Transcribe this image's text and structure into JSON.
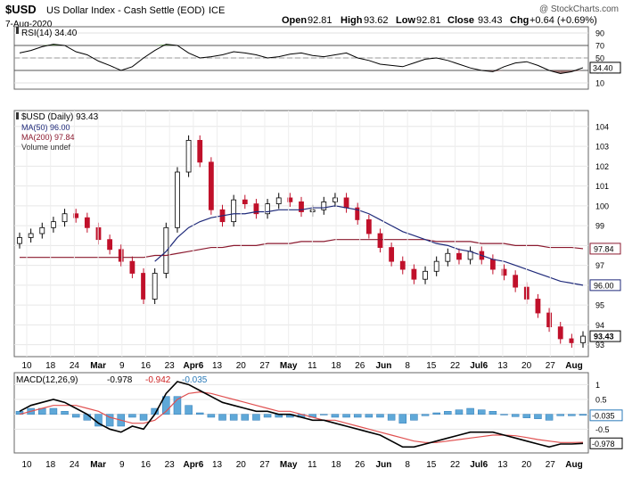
{
  "header": {
    "symbol": "$USD",
    "name": "US Dollar Index - Cash Settle (EOD)",
    "exchange": "ICE",
    "date": "7-Aug-2020",
    "watermark": "@ StockCharts.com",
    "open_label": "Open",
    "open": "92.81",
    "high_label": "High",
    "high": "93.62",
    "low_label": "Low",
    "low": "92.81",
    "close_label": "Close",
    "close": "93.43",
    "chg_label": "Chg",
    "chg": "+0.64 (+0.69%)"
  },
  "chart_data": [
    {
      "type": "line",
      "title": "RSI(14) 34.40",
      "ylim": [
        0,
        100
      ],
      "yticks": [
        "90",
        "70",
        "50",
        "30",
        "10"
      ],
      "overbought": 70,
      "oversold": 30,
      "last_value": "34.40",
      "values": [
        58,
        62,
        68,
        72,
        70,
        60,
        55,
        45,
        38,
        30,
        36,
        50,
        62,
        72,
        70,
        58,
        50,
        52,
        55,
        60,
        58,
        55,
        50,
        52,
        56,
        58,
        54,
        52,
        55,
        58,
        50,
        46,
        40,
        38,
        36,
        42,
        48,
        50,
        46,
        40,
        34,
        30,
        28,
        36,
        42,
        44,
        38,
        30,
        25,
        28,
        34.4
      ]
    },
    {
      "type": "line",
      "title": "$USD (Daily) 93.43",
      "legend": [
        "MA(50) 96.00",
        "MA(200) 97.84",
        "Volume undef"
      ],
      "series_colors": {
        "price": "#000000",
        "ma50": "#1f2a7a",
        "ma200": "#8b1a2f"
      },
      "ylim": [
        92.4,
        104.8
      ],
      "yticks": [
        "104",
        "103",
        "102",
        "101",
        "100",
        "99",
        "98",
        "97",
        "96",
        "95",
        "94",
        "93"
      ],
      "last_price": "93.43",
      "ma50_last": "96.00",
      "ma200_last": "97.84",
      "x_labels": [
        "10",
        "18",
        "24",
        "Mar",
        "9",
        "16",
        "23",
        "Apr6",
        "13",
        "20",
        "27",
        "May",
        "11",
        "18",
        "26",
        "Jun",
        "8",
        "15",
        "22",
        "Jul6",
        "13",
        "20",
        "27",
        "Aug"
      ],
      "price": [
        98.4,
        98.6,
        98.9,
        99.2,
        99.6,
        99.4,
        98.9,
        98.3,
        97.8,
        97.2,
        96.6,
        95.3,
        96.6,
        98.9,
        101.7,
        103.3,
        102.2,
        99.8,
        99.2,
        100.3,
        100.1,
        99.6,
        100.1,
        100.4,
        100.2,
        99.7,
        99.8,
        100.2,
        100.4,
        99.9,
        99.3,
        98.6,
        97.9,
        97.2,
        96.8,
        96.3,
        96.7,
        97.2,
        97.6,
        97.3,
        97.7,
        97.3,
        96.8,
        96.5,
        95.9,
        95.3,
        94.6,
        93.9,
        93.3,
        93.1,
        93.43
      ],
      "ma50": [
        null,
        null,
        null,
        null,
        null,
        null,
        null,
        null,
        null,
        null,
        null,
        null,
        97.2,
        97.7,
        98.4,
        98.9,
        99.2,
        99.4,
        99.5,
        99.6,
        99.6,
        99.7,
        99.7,
        99.8,
        99.8,
        99.8,
        99.9,
        99.9,
        100.0,
        99.9,
        99.8,
        99.6,
        99.3,
        99.0,
        98.7,
        98.5,
        98.3,
        98.1,
        98.0,
        97.8,
        97.7,
        97.5,
        97.3,
        97.2,
        97.0,
        96.8,
        96.6,
        96.4,
        96.2,
        96.1,
        96.0
      ],
      "ma200": [
        97.4,
        97.4,
        97.4,
        97.4,
        97.4,
        97.4,
        97.4,
        97.4,
        97.4,
        97.4,
        97.4,
        97.4,
        97.5,
        97.5,
        97.6,
        97.7,
        97.8,
        97.9,
        97.9,
        98.0,
        98.0,
        98.0,
        98.1,
        98.1,
        98.1,
        98.2,
        98.2,
        98.2,
        98.3,
        98.3,
        98.3,
        98.3,
        98.3,
        98.3,
        98.3,
        98.3,
        98.3,
        98.2,
        98.2,
        98.2,
        98.2,
        98.1,
        98.1,
        98.1,
        98.0,
        98.0,
        98.0,
        97.9,
        97.9,
        97.9,
        97.84
      ]
    },
    {
      "type": "bar",
      "title": "MACD(12,26,9)",
      "title_values": [
        "-0.978",
        "-0.942",
        "-0.035"
      ],
      "ylim": [
        -1.3,
        1.4
      ],
      "yticks": [
        "1",
        "0.5",
        "0.0",
        "-0.5"
      ],
      "last_hist": "-0.035",
      "last_macd": "-0.978",
      "macd": [
        0.1,
        0.3,
        0.4,
        0.5,
        0.4,
        0.2,
        0.0,
        -0.3,
        -0.5,
        -0.6,
        -0.4,
        -0.5,
        0.0,
        0.7,
        1.1,
        1.0,
        0.8,
        0.6,
        0.4,
        0.3,
        0.2,
        0.1,
        0.1,
        0.0,
        0.0,
        -0.1,
        -0.2,
        -0.2,
        -0.3,
        -0.4,
        -0.5,
        -0.6,
        -0.7,
        -0.9,
        -1.1,
        -1.1,
        -1.0,
        -0.9,
        -0.8,
        -0.7,
        -0.6,
        -0.6,
        -0.6,
        -0.7,
        -0.8,
        -0.9,
        -1.0,
        -1.1,
        -1.0,
        -1.0,
        -0.978
      ],
      "signal": [
        0.0,
        0.1,
        0.2,
        0.3,
        0.3,
        0.3,
        0.2,
        0.1,
        -0.1,
        -0.2,
        -0.3,
        -0.3,
        -0.2,
        0.1,
        0.5,
        0.7,
        0.75,
        0.7,
        0.6,
        0.5,
        0.4,
        0.3,
        0.2,
        0.1,
        0.1,
        0.0,
        -0.1,
        -0.2,
        -0.2,
        -0.3,
        -0.4,
        -0.5,
        -0.6,
        -0.7,
        -0.8,
        -0.9,
        -0.95,
        -0.95,
        -0.9,
        -0.85,
        -0.8,
        -0.75,
        -0.7,
        -0.7,
        -0.72,
        -0.78,
        -0.85,
        -0.9,
        -0.95,
        -0.95,
        -0.942
      ],
      "histogram": [
        0.1,
        0.2,
        0.2,
        0.2,
        0.1,
        -0.1,
        -0.2,
        -0.4,
        -0.4,
        -0.4,
        -0.1,
        -0.2,
        0.2,
        0.6,
        0.6,
        0.3,
        0.05,
        -0.1,
        -0.2,
        -0.2,
        -0.2,
        -0.2,
        -0.1,
        -0.1,
        -0.1,
        -0.1,
        -0.1,
        0.0,
        -0.1,
        -0.1,
        -0.1,
        -0.1,
        -0.1,
        -0.2,
        -0.3,
        -0.2,
        -0.05,
        0.05,
        0.1,
        0.15,
        0.2,
        0.15,
        0.1,
        0.0,
        -0.08,
        -0.12,
        -0.15,
        -0.2,
        -0.05,
        -0.05,
        -0.035
      ]
    }
  ]
}
